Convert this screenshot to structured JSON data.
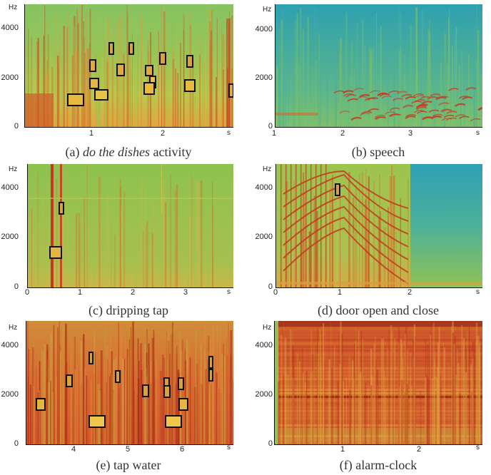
{
  "figure": {
    "panels": [
      {
        "id": "a",
        "caption_prefix": "(a) ",
        "caption_italic": "do the dishes",
        "caption_suffix": " activity",
        "y_unit": "Hz",
        "y_ticks": [
          "4000",
          "2000",
          "0"
        ],
        "x_ticks": [
          "1",
          "2"
        ],
        "x_unit": "s",
        "theme": "dishes",
        "box_count": 14
      },
      {
        "id": "b",
        "caption_prefix": "(b) speech",
        "caption_italic": "",
        "caption_suffix": "",
        "y_unit": "Hz",
        "y_ticks": [
          "4000",
          "2000",
          "0"
        ],
        "x_ticks": [
          "1",
          "2",
          "3"
        ],
        "x_unit": "s",
        "theme": "speech",
        "box_count": 0
      },
      {
        "id": "c",
        "caption_prefix": "(c) dripping tap",
        "caption_italic": "",
        "caption_suffix": "",
        "y_unit": "Hz",
        "y_ticks": [
          "4000",
          "2000",
          "0"
        ],
        "x_ticks": [
          "0",
          "1",
          "2",
          "3"
        ],
        "x_unit": "s",
        "theme": "drip",
        "box_count": 2
      },
      {
        "id": "d",
        "caption_prefix": "(d) door open and close",
        "caption_italic": "",
        "caption_suffix": "",
        "y_unit": "Hz",
        "y_ticks": [
          "4000",
          "2000",
          "0"
        ],
        "x_ticks": [
          "0",
          "1",
          "2"
        ],
        "x_unit": "s",
        "theme": "door",
        "box_count": 1
      },
      {
        "id": "e",
        "caption_prefix": "(e) tap water",
        "caption_italic": "",
        "caption_suffix": "",
        "y_unit": "Hz",
        "y_ticks": [
          "4000",
          "2000",
          "0"
        ],
        "x_ticks": [
          "4",
          "5",
          "6"
        ],
        "x_unit": "s",
        "theme": "tap",
        "box_count": 11
      },
      {
        "id": "f",
        "caption_prefix": "(f) alarm-clock",
        "caption_italic": "",
        "caption_suffix": "",
        "y_unit": "Hz",
        "y_ticks": [
          "4000",
          "2000",
          "0"
        ],
        "x_ticks": [
          "1",
          "2"
        ],
        "x_unit": "s",
        "theme": "alarm",
        "box_count": 0
      }
    ]
  }
}
